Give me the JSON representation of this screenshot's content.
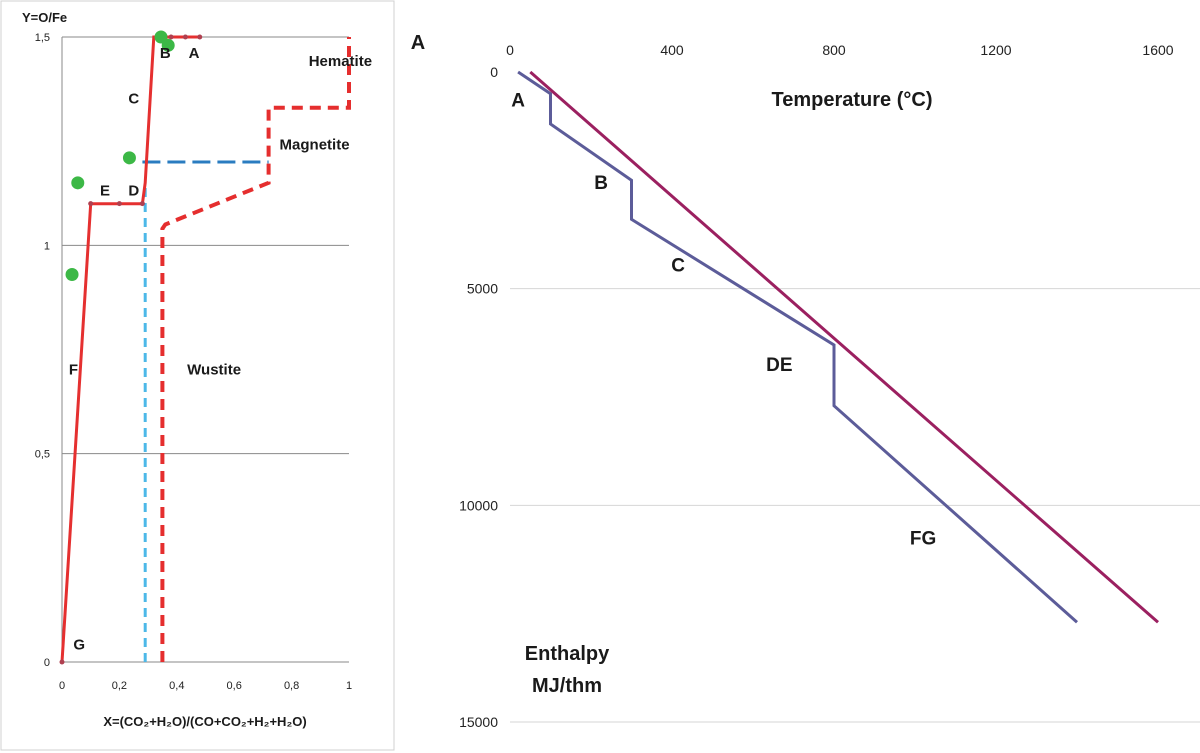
{
  "panel_letter": "A",
  "chart_data": [
    {
      "type": "line",
      "title": "",
      "xlabel": "X=(CO₂+H₂O)/(CO+CO₂+H₂+H₂O)",
      "ylabel": "Y=O/Fe",
      "xlim": [
        0,
        1
      ],
      "ylim": [
        0,
        1.5
      ],
      "x_ticks": [
        "0",
        "0,2",
        "0,4",
        "0,6",
        "0,8",
        "1"
      ],
      "y_ticks": [
        {
          "value": 0,
          "label": "0"
        },
        {
          "value": 0.5,
          "label": "0,5"
        },
        {
          "value": 1,
          "label": "1"
        },
        {
          "value": 1.5,
          "label": "1,5"
        }
      ],
      "grid": "horizontal",
      "colors": {
        "operating_line": "#e53030",
        "equilibrium": "#e52e2e",
        "wustite_boundary": "#4db8e8",
        "magnetite_step": "#2a7cc0",
        "points": "#3cb846"
      },
      "series": [
        {
          "x": [
            0,
            0.1,
            0.28,
            0.29,
            0.32,
            0.48
          ],
          "y": [
            0,
            1.1,
            1.1,
            1.15,
            1.5,
            1.5
          ]
        },
        {
          "x": [
            0.35,
            0.35,
            0.36,
            0.72,
            0.72,
            1.0,
            1.0
          ],
          "y": [
            0,
            1.04,
            1.05,
            1.15,
            1.33,
            1.33,
            1.5
          ]
        },
        {
          "x": [
            0.29,
            0.29
          ],
          "y": [
            0,
            1.15
          ]
        },
        {
          "x": [
            0.28,
            0.72
          ],
          "y": [
            1.2,
            1.2
          ]
        }
      ],
      "scatter_points": [
        {
          "x": 0.035,
          "y": 0.93
        },
        {
          "x": 0.055,
          "y": 1.15
        },
        {
          "x": 0.235,
          "y": 1.21
        },
        {
          "x": 0.345,
          "y": 1.5
        },
        {
          "x": 0.37,
          "y": 1.48
        }
      ],
      "point_labels": [
        {
          "text": "A",
          "x": 0.46,
          "y": 1.45
        },
        {
          "text": "B",
          "x": 0.36,
          "y": 1.45
        },
        {
          "text": "C",
          "x": 0.25,
          "y": 1.34
        },
        {
          "text": "D",
          "x": 0.25,
          "y": 1.12
        },
        {
          "text": "E",
          "x": 0.15,
          "y": 1.12
        },
        {
          "text": "F",
          "x": 0.04,
          "y": 0.69
        },
        {
          "text": "G",
          "x": 0.06,
          "y": 0.03
        }
      ],
      "region_labels": [
        {
          "text": "Hematite",
          "x": 0.97,
          "y": 1.43
        },
        {
          "text": "Magnetite",
          "x": 0.88,
          "y": 1.23
        },
        {
          "text": "Wustite",
          "x": 0.53,
          "y": 0.69
        }
      ]
    },
    {
      "type": "line",
      "title": "Temperature (°C)",
      "ylabel": "Enthalpy MJ/thm",
      "ylabel_lines": [
        "Enthalpy",
        "MJ/thm"
      ],
      "xlim": [
        0,
        1600
      ],
      "ylim": [
        0,
        15000
      ],
      "y_inverted": true,
      "x_axis_position": "top",
      "x_ticks": [
        "0",
        "400",
        "800",
        "1200",
        "1600"
      ],
      "y_ticks": [
        "0",
        "5000",
        "10000",
        "15000"
      ],
      "grid": "horizontal",
      "series": [
        {
          "color": "#5c5c99",
          "x": [
            20,
            100,
            100,
            300,
            300,
            800,
            800,
            1400
          ],
          "y": [
            0,
            500,
            1200,
            2500,
            3400,
            6300,
            7700,
            12700
          ]
        },
        {
          "color": "#9b2060",
          "x": [
            50,
            1600
          ],
          "y": [
            0,
            12700
          ]
        }
      ],
      "point_labels": [
        {
          "text": "A",
          "x": 20,
          "y": 800
        },
        {
          "text": "B",
          "x": 225,
          "y": 2700
        },
        {
          "text": "C",
          "x": 415,
          "y": 4600
        },
        {
          "text": "DE",
          "x": 665,
          "y": 6900
        },
        {
          "text": "FG",
          "x": 1020,
          "y": 10900
        }
      ]
    }
  ]
}
